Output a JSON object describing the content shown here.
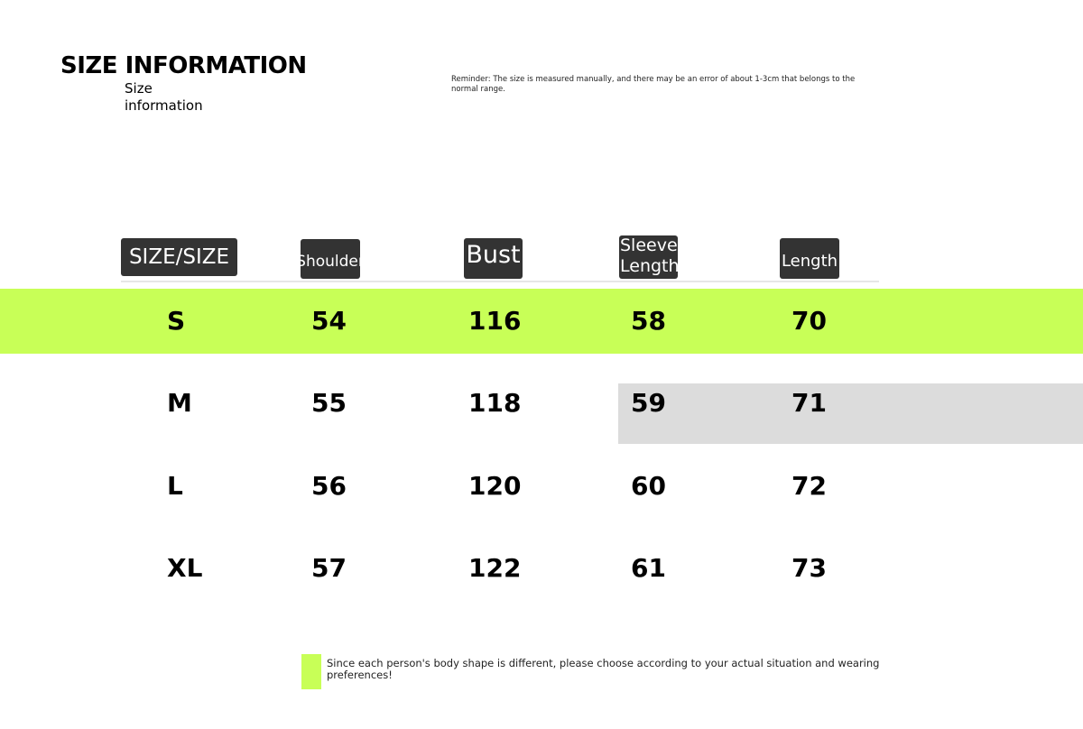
{
  "header": {
    "title": "SIZE INFORMATION",
    "subtitle": "Size information",
    "reminder": "Reminder: The size is measured manually, and there may be an error of about 1-3cm that belongs to the normal range."
  },
  "table": {
    "columns": [
      "SIZE/SIZE",
      "Shoulder",
      "Bust",
      "Sleeve Length",
      "Length"
    ],
    "rows": [
      {
        "size": "S",
        "shoulder": "54",
        "bust": "116",
        "sleeve": "58",
        "length": "70"
      },
      {
        "size": "M",
        "shoulder": "55",
        "bust": "118",
        "sleeve": "59",
        "length": "71"
      },
      {
        "size": "L",
        "shoulder": "56",
        "bust": "120",
        "sleeve": "60",
        "length": "72"
      },
      {
        "size": "XL",
        "shoulder": "57",
        "bust": "122",
        "sleeve": "61",
        "length": "73"
      }
    ]
  },
  "footer": {
    "note": "Since each person's body shape is different, please choose according to your actual situation and wearing preferences!"
  },
  "colors": {
    "accent": "#c8ff57",
    "highlight_gray": "#dcdcdc",
    "header_bg": "#333333"
  }
}
